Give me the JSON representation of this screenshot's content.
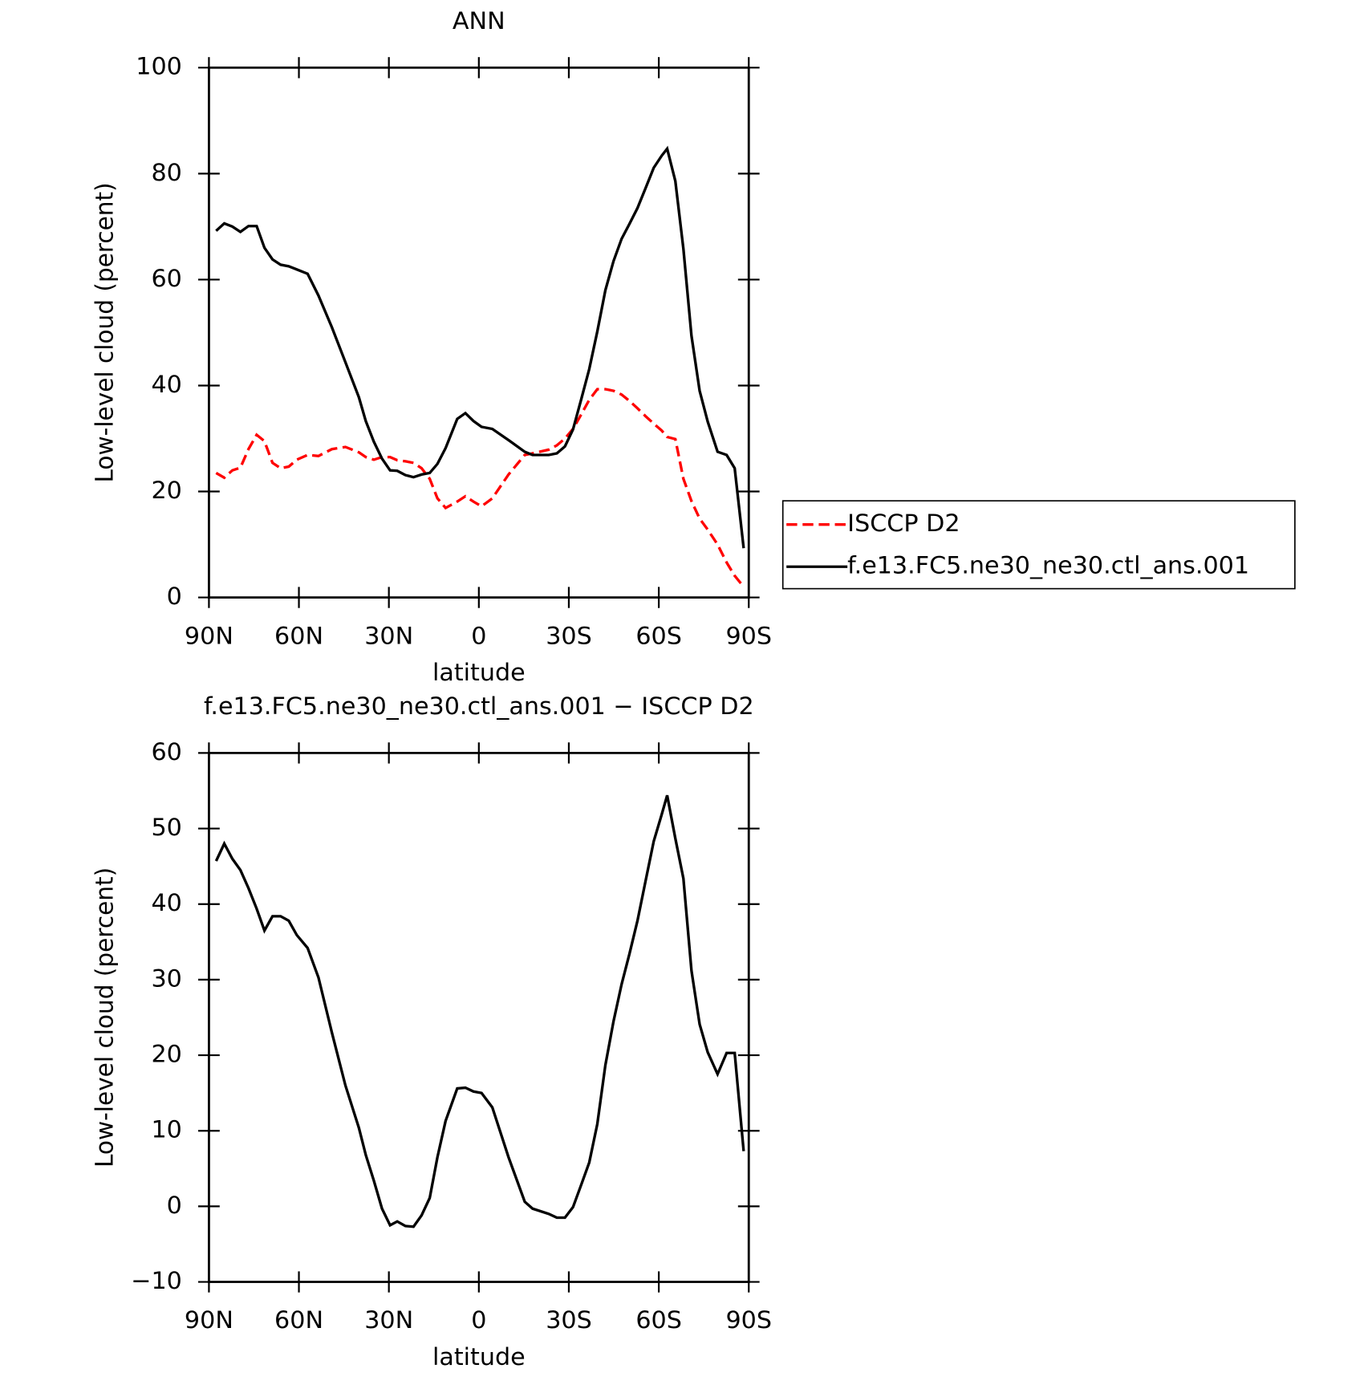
{
  "chart_data": [
    {
      "type": "line",
      "title": "ANN",
      "xlabel": "latitude",
      "ylabel": "Low-level cloud (percent)",
      "x": [
        87.6,
        84.9,
        82.2,
        79.5,
        76.8,
        74.1,
        71.5,
        68.8,
        66.1,
        63.4,
        60.7,
        57.1,
        53.5,
        49.0,
        44.5,
        40.0,
        37.7,
        35.0,
        32.3,
        29.6,
        27.2,
        24.5,
        21.8,
        19.1,
        16.4,
        13.8,
        11.1,
        7.2,
        4.5,
        1.8,
        -0.9,
        -4.5,
        -9.9,
        -15.3,
        -17.9,
        -23.3,
        -26.0,
        -28.7,
        -31.4,
        -34.1,
        -36.8,
        -39.5,
        -42.2,
        -44.9,
        -47.6,
        -50.2,
        -52.9,
        -55.6,
        -58.3,
        -61.0,
        -62.8,
        -65.5,
        -68.2,
        -70.9,
        -73.6,
        -76.3,
        -79.6,
        -82.6,
        -85.3,
        -88.3
      ],
      "series": [
        {
          "name": "ISCCP D2",
          "color": "#ff0000",
          "dash": "dashed",
          "values": [
            23.5,
            22.6,
            24.0,
            24.5,
            28.0,
            30.7,
            29.5,
            25.4,
            24.4,
            24.7,
            26.0,
            26.9,
            26.7,
            28.0,
            28.4,
            27.4,
            26.5,
            26.0,
            26.5,
            26.5,
            25.9,
            25.7,
            25.4,
            24.4,
            22.4,
            18.7,
            16.9,
            18.1,
            19.1,
            18.1,
            17.2,
            18.7,
            23.2,
            26.9,
            27.2,
            27.9,
            28.7,
            30.0,
            31.8,
            34.5,
            37.3,
            39.3,
            39.3,
            39.0,
            38.3,
            37.1,
            35.7,
            34.2,
            32.8,
            31.5,
            30.3,
            29.9,
            22.4,
            18.2,
            14.9,
            12.8,
            10.0,
            6.6,
            4.1,
            2.0
          ]
        },
        {
          "name": "f.e13.FC5.ne30_ne30.ctl_ans.001",
          "color": "#000000",
          "dash": "solid",
          "values": [
            69.2,
            70.6,
            70.0,
            69.0,
            70.1,
            70.1,
            66.0,
            63.8,
            62.8,
            62.5,
            61.9,
            61.1,
            57.0,
            51.0,
            44.4,
            37.8,
            33.3,
            29.4,
            26.2,
            24.0,
            23.9,
            23.1,
            22.7,
            23.2,
            23.5,
            25.2,
            28.2,
            33.7,
            34.8,
            33.3,
            32.2,
            31.8,
            29.7,
            27.5,
            26.9,
            26.9,
            27.2,
            28.5,
            31.7,
            37.3,
            43.1,
            50.2,
            58.0,
            63.5,
            67.7,
            70.5,
            73.5,
            77.3,
            81.1,
            83.4,
            84.7,
            78.6,
            65.8,
            49.4,
            39.0,
            33.2,
            27.5,
            26.9,
            24.4,
            9.3
          ]
        }
      ],
      "xlim": [
        90,
        -90
      ],
      "xticks": [
        {
          "value": 90,
          "label": "90N"
        },
        {
          "value": 60,
          "label": "60N"
        },
        {
          "value": 30,
          "label": "30N"
        },
        0,
        {
          "value": -30,
          "label": "30S"
        },
        {
          "value": -60,
          "label": "60S"
        },
        {
          "value": -90,
          "label": "90S"
        }
      ],
      "ylim": [
        0,
        100
      ],
      "yticks": [
        0,
        20,
        40,
        60,
        80,
        100
      ],
      "legend": "right"
    },
    {
      "type": "line",
      "title": "f.e13.FC5.ne30_ne30.ctl_ans.001 − ISCCP D2",
      "xlabel": "latitude",
      "ylabel": "Low-level cloud (percent)",
      "x": [
        87.6,
        84.9,
        82.2,
        79.5,
        76.8,
        74.1,
        71.5,
        68.8,
        66.1,
        63.4,
        60.7,
        57.1,
        53.5,
        49.0,
        44.5,
        40.0,
        37.7,
        35.0,
        32.3,
        29.6,
        27.2,
        24.5,
        21.8,
        19.1,
        16.4,
        13.8,
        11.1,
        7.2,
        4.5,
        1.8,
        -0.9,
        -4.5,
        -9.9,
        -15.3,
        -17.9,
        -23.3,
        -26.0,
        -28.7,
        -31.4,
        -34.1,
        -36.8,
        -39.5,
        -42.2,
        -44.9,
        -47.6,
        -50.2,
        -52.9,
        -55.6,
        -58.3,
        -61.0,
        -62.8,
        -65.5,
        -68.2,
        -70.9,
        -73.6,
        -76.3,
        -79.6,
        -82.6,
        -85.3,
        -88.3
      ],
      "series": [
        {
          "color": "#000000",
          "dash": "solid",
          "values": [
            45.7,
            48.0,
            46.0,
            44.5,
            42.1,
            39.4,
            36.5,
            38.4,
            38.4,
            37.8,
            35.9,
            34.2,
            30.3,
            23.0,
            16.0,
            10.4,
            6.8,
            3.4,
            -0.3,
            -2.5,
            -2.0,
            -2.6,
            -2.7,
            -1.2,
            1.1,
            6.5,
            11.3,
            15.6,
            15.7,
            15.2,
            15.0,
            13.1,
            6.5,
            0.6,
            -0.3,
            -1.0,
            -1.5,
            -1.5,
            -0.1,
            2.8,
            5.8,
            10.9,
            18.7,
            24.5,
            29.4,
            33.4,
            37.8,
            43.1,
            48.3,
            51.9,
            54.4,
            48.7,
            43.4,
            31.2,
            24.1,
            20.4,
            17.5,
            20.3,
            20.3,
            7.3
          ]
        }
      ],
      "xlim": [
        90,
        -90
      ],
      "xticks": [
        {
          "value": 90,
          "label": "90N"
        },
        {
          "value": 60,
          "label": "60N"
        },
        {
          "value": 30,
          "label": "30N"
        },
        0,
        {
          "value": -30,
          "label": "30S"
        },
        {
          "value": -60,
          "label": "60S"
        },
        {
          "value": -90,
          "label": "90S"
        }
      ],
      "ylim": [
        -10,
        60
      ],
      "yticks": [
        {
          "value": -10,
          "label": "−10"
        },
        0,
        10,
        20,
        30,
        40,
        50,
        60
      ]
    }
  ]
}
